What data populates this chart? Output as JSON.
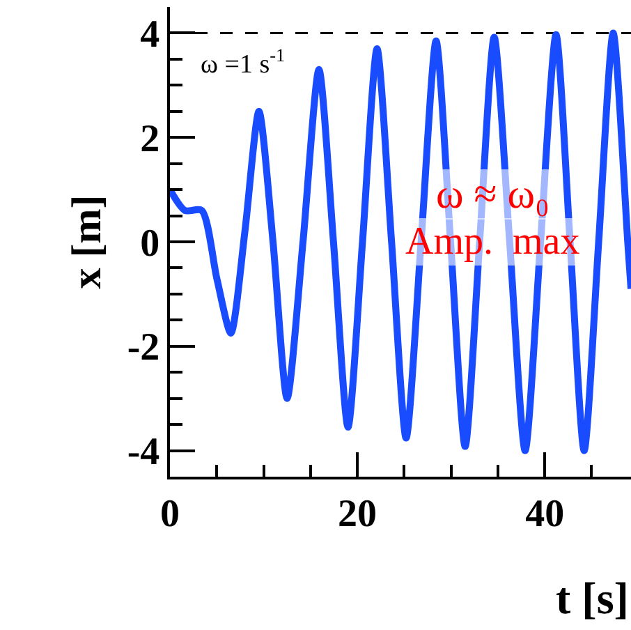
{
  "chart_data": {
    "type": "line",
    "xlabel": "t [s]",
    "ylabel": "x [m]",
    "x": [
      0,
      1.6,
      3.4,
      5.0,
      6.5,
      8.0,
      9.5,
      11.0,
      12.5,
      14.2,
      15.9,
      17.45,
      19.0,
      20.55,
      22.1,
      23.65,
      25.2,
      26.8,
      28.4,
      29.95,
      31.5,
      33.05,
      34.6,
      36.25,
      37.9,
      39.55,
      41.2,
      42.7,
      44.2,
      45.75,
      47.3,
      48.85,
      49.2
    ],
    "series": [
      {
        "color": "#1a4cff",
        "values": [
          1.0,
          0.6,
          0.6,
          -0.7,
          -1.75,
          0.2,
          2.5,
          0.0,
          -3.0,
          0.0,
          3.3,
          0.0,
          -3.55,
          0.0,
          3.7,
          0.0,
          -3.76,
          0.0,
          3.85,
          0.0,
          -3.92,
          0.0,
          3.92,
          0.0,
          -4.0,
          0.0,
          3.97,
          0.0,
          -4.0,
          0.0,
          4.0,
          0.0,
          -0.9
        ]
      }
    ],
    "xlim": [
      0,
      49.2
    ],
    "ylim": [
      -4.5,
      4.5
    ],
    "xticks": [
      0,
      20,
      40
    ],
    "yticks": [
      -4,
      -2,
      0,
      2,
      4
    ],
    "ref_lines": [
      {
        "axis": "y",
        "value": 4,
        "color": "#000000",
        "line_style": "dashed"
      }
    ],
    "annotations": [
      "ω =1 s$^{-1}$",
      "ω ≈ ω₀",
      "Amp.  max"
    ],
    "grid": false,
    "legend": false,
    "marker": "none",
    "line_style": "solid"
  }
}
